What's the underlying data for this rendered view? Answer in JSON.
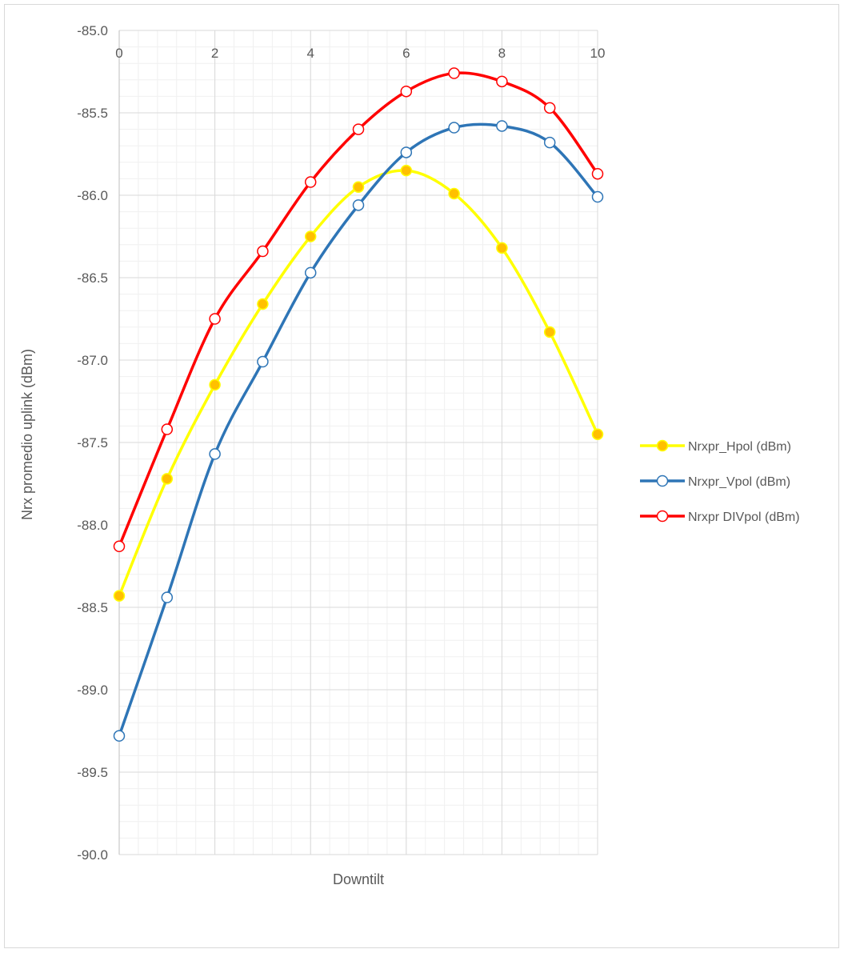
{
  "chart_data": {
    "type": "line",
    "title": "",
    "xlabel": "Downtilt",
    "ylabel": "Nrx promedio uplink (dBm)",
    "x": [
      0,
      1,
      2,
      3,
      4,
      5,
      6,
      7,
      8,
      9,
      10
    ],
    "xlim": [
      0,
      10
    ],
    "ylim": [
      -90.0,
      -85.0
    ],
    "x_major_ticks": [
      "0",
      "2",
      "4",
      "6",
      "8",
      "10"
    ],
    "y_ticks": [
      "-85.0",
      "-85.5",
      "-86.0",
      "-86.5",
      "-87.0",
      "-87.5",
      "-88.0",
      "-88.5",
      "-89.0",
      "-89.5",
      "-90.0"
    ],
    "x_axis_position": "top",
    "grid": true,
    "smoothed": true,
    "legend_position": "right",
    "series": [
      {
        "name": "Nrxpr_Hpol (dBm)",
        "color": "#ffff00",
        "marker_fill": "#ffc000",
        "marker_stroke": "#ffff00",
        "values": [
          -88.43,
          -87.72,
          -87.15,
          -86.66,
          -86.25,
          -85.95,
          -85.85,
          -85.99,
          -86.32,
          -86.83,
          -87.45
        ]
      },
      {
        "name": "Nrxpr_Vpol (dBm)",
        "color": "#2e75b6",
        "marker_fill": "#ffffff",
        "marker_stroke": "#2e75b6",
        "values": [
          -89.28,
          -88.44,
          -87.57,
          -87.01,
          -86.47,
          -86.06,
          -85.74,
          -85.59,
          -85.58,
          -85.68,
          -86.01
        ]
      },
      {
        "name": "Nrxpr DIVpol (dBm)",
        "color": "#ff0000",
        "marker_fill": "#ffffff",
        "marker_stroke": "#ff0000",
        "values": [
          -88.13,
          -87.42,
          -86.75,
          -86.34,
          -85.92,
          -85.6,
          -85.37,
          -85.26,
          -85.31,
          -85.47,
          -85.87
        ]
      }
    ]
  }
}
